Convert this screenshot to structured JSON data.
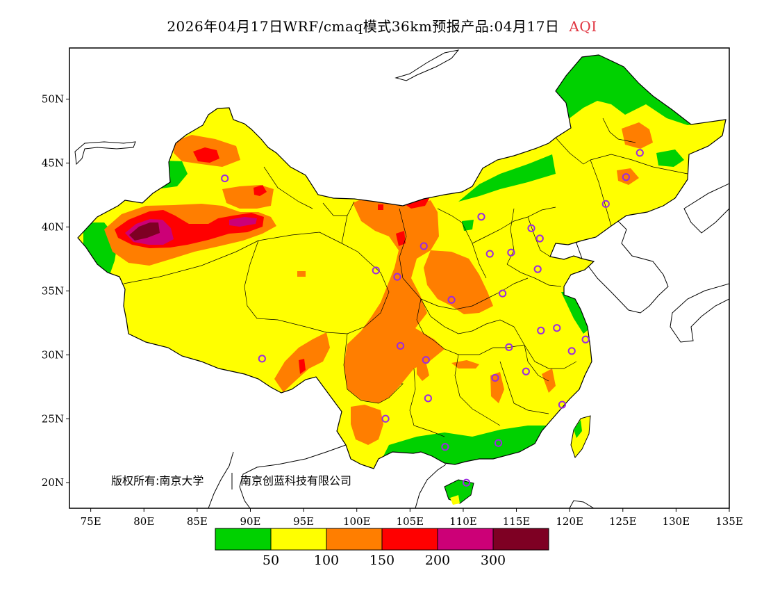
{
  "title": {
    "main": "2026年04月17日WRF/cmaq模式36km预报产品:04月17日",
    "variable": "AQI",
    "variable_color": "#e0333f"
  },
  "map": {
    "lon_range": [
      73,
      135
    ],
    "lat_range": [
      18,
      54
    ],
    "lon_ticks": [
      {
        "value": 75,
        "label": "75E"
      },
      {
        "value": 80,
        "label": "80E"
      },
      {
        "value": 85,
        "label": "85E"
      },
      {
        "value": 90,
        "label": "90E"
      },
      {
        "value": 95,
        "label": "95E"
      },
      {
        "value": 100,
        "label": "100E"
      },
      {
        "value": 105,
        "label": "105E"
      },
      {
        "value": 110,
        "label": "110E"
      },
      {
        "value": 115,
        "label": "115E"
      },
      {
        "value": 120,
        "label": "120E"
      },
      {
        "value": 125,
        "label": "125E"
      },
      {
        "value": 130,
        "label": "130E"
      },
      {
        "value": 135,
        "label": "135E"
      }
    ],
    "lat_ticks": [
      {
        "value": 20,
        "label": "20N"
      },
      {
        "value": 25,
        "label": "25N"
      },
      {
        "value": 30,
        "label": "30N"
      },
      {
        "value": 35,
        "label": "35N"
      },
      {
        "value": 40,
        "label": "40N"
      },
      {
        "value": 45,
        "label": "45N"
      },
      {
        "value": 50,
        "label": "50N"
      }
    ],
    "city_markers": [
      [
        87.6,
        43.8
      ],
      [
        91.1,
        29.7
      ],
      [
        101.8,
        36.6
      ],
      [
        103.8,
        36.1
      ],
      [
        106.3,
        38.5
      ],
      [
        111.7,
        40.8
      ],
      [
        116.4,
        39.9
      ],
      [
        117.2,
        39.1
      ],
      [
        114.5,
        38.0
      ],
      [
        112.5,
        37.9
      ],
      [
        117.0,
        36.7
      ],
      [
        113.7,
        34.8
      ],
      [
        108.9,
        34.3
      ],
      [
        104.1,
        30.7
      ],
      [
        106.5,
        29.6
      ],
      [
        106.7,
        26.6
      ],
      [
        102.7,
        25.0
      ],
      [
        108.3,
        22.8
      ],
      [
        113.3,
        23.1
      ],
      [
        110.3,
        20.0
      ],
      [
        114.3,
        30.6
      ],
      [
        113.0,
        28.2
      ],
      [
        115.9,
        28.7
      ],
      [
        119.3,
        26.1
      ],
      [
        120.2,
        30.3
      ],
      [
        121.5,
        31.2
      ],
      [
        118.8,
        32.1
      ],
      [
        117.3,
        31.9
      ],
      [
        123.4,
        41.8
      ],
      [
        125.3,
        43.9
      ],
      [
        126.6,
        45.8
      ]
    ],
    "marker_color": "#9b2be0"
  },
  "copyright": {
    "owner": "版权所有:南京大学",
    "partner": "南京创蓝科技有限公司"
  },
  "legend": {
    "colors": [
      "#00d100",
      "#ffff00",
      "#ff7e00",
      "#ff0000",
      "#cc0077",
      "#7e0023"
    ],
    "labels": [
      "50",
      "100",
      "150",
      "200",
      "300"
    ]
  }
}
